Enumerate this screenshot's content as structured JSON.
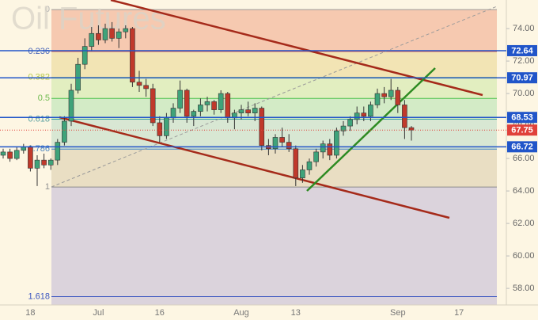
{
  "chart_data": {
    "type": "candlestick",
    "title": "Oil Futures",
    "categories": [
      null,
      null,
      null,
      null,
      "18",
      null,
      null,
      null,
      null,
      null,
      null,
      null,
      null,
      null,
      "Jul",
      null,
      null,
      null,
      null,
      null,
      null,
      null,
      null,
      "16",
      null,
      null,
      null,
      null,
      null,
      null,
      null,
      null,
      null,
      null,
      null,
      "Aug",
      null,
      null,
      null,
      null,
      null,
      null,
      null,
      "13",
      null,
      null,
      null,
      null,
      null,
      null,
      null,
      null,
      null,
      null,
      null,
      null,
      null,
      null,
      "Sep",
      null,
      null,
      null,
      null,
      null,
      null,
      null,
      null,
      "17",
      null,
      null,
      null,
      null
    ],
    "candles": [
      [
        66.2,
        66.6,
        66.0,
        66.4
      ],
      [
        66.4,
        66.6,
        65.8,
        66.0
      ],
      [
        66.0,
        66.7,
        65.9,
        66.5
      ],
      [
        66.5,
        66.9,
        66.3,
        66.7
      ],
      [
        66.7,
        66.8,
        65.2,
        65.4
      ],
      [
        65.4,
        66.2,
        64.3,
        65.9
      ],
      [
        65.9,
        66.3,
        65.4,
        65.6
      ],
      [
        65.6,
        66.0,
        65.3,
        65.9
      ],
      [
        65.9,
        67.2,
        65.6,
        67.0
      ],
      [
        67.0,
        68.6,
        66.8,
        68.3
      ],
      [
        68.3,
        70.6,
        68.0,
        70.2
      ],
      [
        70.2,
        72.2,
        70.0,
        71.8
      ],
      [
        71.8,
        73.4,
        71.5,
        72.9
      ],
      [
        72.9,
        74.1,
        72.6,
        73.7
      ],
      [
        73.7,
        74.2,
        73.0,
        73.3
      ],
      [
        73.3,
        74.3,
        73.1,
        74.0
      ],
      [
        74.0,
        74.4,
        73.2,
        73.4
      ],
      [
        73.4,
        74.0,
        72.8,
        73.8
      ],
      [
        73.8,
        74.2,
        73.4,
        74.0
      ],
      [
        74.0,
        74.1,
        70.4,
        70.7
      ],
      [
        70.7,
        71.4,
        70.1,
        70.5
      ],
      [
        70.5,
        70.9,
        69.8,
        70.3
      ],
      [
        70.3,
        70.6,
        68.0,
        68.2
      ],
      [
        68.2,
        68.6,
        67.0,
        67.4
      ],
      [
        67.4,
        68.8,
        67.2,
        68.5
      ],
      [
        68.5,
        69.4,
        68.2,
        69.1
      ],
      [
        69.1,
        70.8,
        68.8,
        70.2
      ],
      [
        70.2,
        70.3,
        68.2,
        68.6
      ],
      [
        68.6,
        69.0,
        68.0,
        68.9
      ],
      [
        68.9,
        69.7,
        68.6,
        69.3
      ],
      [
        69.3,
        69.8,
        68.9,
        69.5
      ],
      [
        69.5,
        69.6,
        68.7,
        69.0
      ],
      [
        69.0,
        70.2,
        68.8,
        70.0
      ],
      [
        70.0,
        70.1,
        68.2,
        68.5
      ],
      [
        68.5,
        69.0,
        67.8,
        68.8
      ],
      [
        68.8,
        69.3,
        68.4,
        69.0
      ],
      [
        69.0,
        69.5,
        68.6,
        68.8
      ],
      [
        68.8,
        69.4,
        68.3,
        69.1
      ],
      [
        69.1,
        69.2,
        66.5,
        66.8
      ],
      [
        66.8,
        67.2,
        66.2,
        66.6
      ],
      [
        66.6,
        67.5,
        66.3,
        67.3
      ],
      [
        67.3,
        67.9,
        66.7,
        67.0
      ],
      [
        67.0,
        67.5,
        66.4,
        66.6
      ],
      [
        66.6,
        66.8,
        64.3,
        64.8
      ],
      [
        64.8,
        65.6,
        64.5,
        65.3
      ],
      [
        65.3,
        66.0,
        65.0,
        65.8
      ],
      [
        65.8,
        66.6,
        65.5,
        66.4
      ],
      [
        66.4,
        67.1,
        66.0,
        66.9
      ],
      [
        66.9,
        67.2,
        65.9,
        66.2
      ],
      [
        66.2,
        67.9,
        66.0,
        67.7
      ],
      [
        67.7,
        68.3,
        67.4,
        68.0
      ],
      [
        68.0,
        68.6,
        67.7,
        68.4
      ],
      [
        68.4,
        69.2,
        68.1,
        68.8
      ],
      [
        68.8,
        69.2,
        68.3,
        68.6
      ],
      [
        68.6,
        69.5,
        68.3,
        69.3
      ],
      [
        69.3,
        70.3,
        69.1,
        70.0
      ],
      [
        70.0,
        70.4,
        69.4,
        69.8
      ],
      [
        69.8,
        70.9,
        69.6,
        70.2
      ],
      [
        70.2,
        70.4,
        68.8,
        69.3
      ],
      [
        69.3,
        69.6,
        67.2,
        67.9
      ],
      [
        67.9,
        68.0,
        67.1,
        67.75
      ],
      null,
      null,
      null,
      null,
      null,
      null,
      null,
      null,
      null,
      null,
      null
    ],
    "up_color": "#3fa37a",
    "down_color": "#c0392b",
    "ylim": [
      56.98,
      75.76
    ],
    "yticks": [
      {
        "value": 58,
        "label": "58.00"
      },
      {
        "value": 60,
        "label": "60.00"
      },
      {
        "value": 62,
        "label": "62.00"
      },
      {
        "value": 64,
        "label": "64.00"
      },
      {
        "value": 66,
        "label": "66.00"
      },
      {
        "value": 68,
        "label": "68.00"
      },
      {
        "value": 70,
        "label": "70.00"
      },
      {
        "value": 72,
        "label": "72.00"
      },
      {
        "value": 74,
        "label": "74.00"
      }
    ],
    "fib_levels": [
      {
        "ratio": 0,
        "price": 75.17,
        "fill": "#f6c9b0",
        "line": "#9a9a9a",
        "text_color": "#b0b0b0"
      },
      {
        "ratio": 0.236,
        "price": 72.59,
        "fill": "#f2e4b4",
        "line": "#d9534f",
        "text_color": "#4a66b8"
      },
      {
        "ratio": 0.382,
        "price": 70.99,
        "fill": "#e2eec0",
        "line": "#9bcf4a",
        "text_color": "#b8c94a"
      },
      {
        "ratio": 0.5,
        "price": 69.7,
        "fill": "#d3ebc6",
        "line": "#4cc24c",
        "text_color": "#6fba4f"
      },
      {
        "ratio": 0.618,
        "price": 68.42,
        "fill": "#d8e7d3",
        "line": "#3aa0a0",
        "text_color": "#5aa0a0"
      },
      {
        "ratio": 0.786,
        "price": 66.58,
        "fill": "#e9dec3",
        "line": "#3f86c8",
        "text_color": "#4a86c0"
      },
      {
        "ratio": 1,
        "price": 64.24,
        "fill": "#dbd3dc",
        "line": "#8c8c8c",
        "text_color": "#909090"
      },
      {
        "ratio": 1.618,
        "price": 57.49,
        "fill": "#dbd3dc",
        "line": "#3a55c0",
        "text_color": "#3a55c0"
      }
    ],
    "price_lines": [
      {
        "value": 72.64,
        "color": "#2155c9",
        "style": "solid"
      },
      {
        "value": 70.97,
        "color": "#2155c9",
        "style": "solid"
      },
      {
        "value": 68.53,
        "color": "#2155c9",
        "style": "solid"
      },
      {
        "value": 66.72,
        "color": "#2155c9",
        "style": "solid"
      },
      {
        "value": 67.75,
        "color": "#e0413a",
        "style": "dotted"
      }
    ]
  }
}
